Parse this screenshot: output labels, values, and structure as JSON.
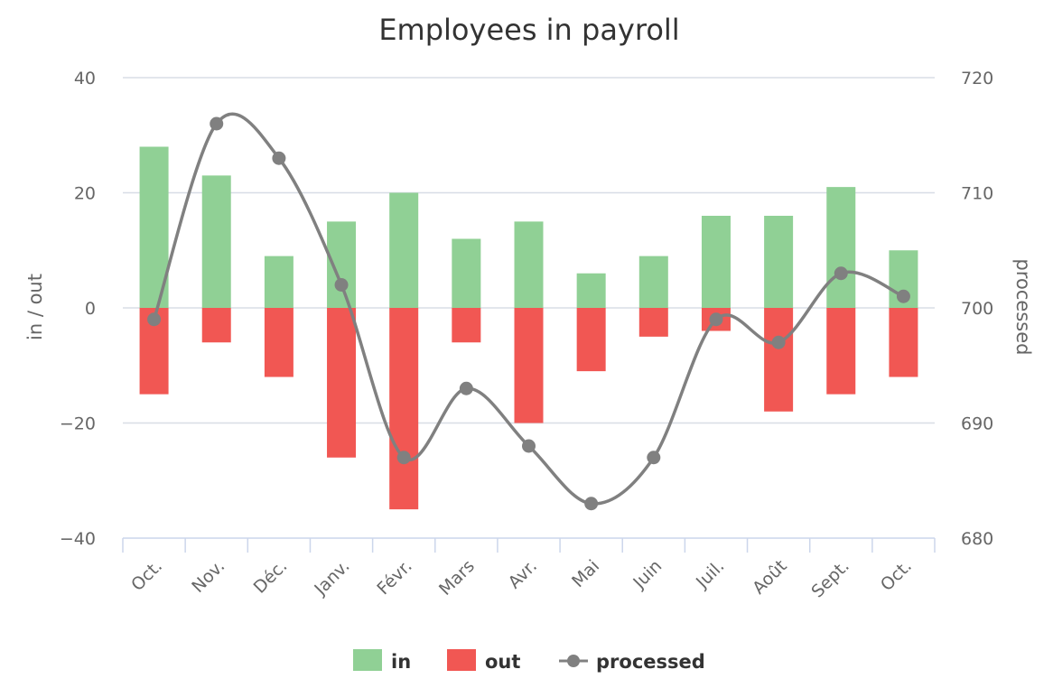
{
  "chart_data": {
    "type": "bar",
    "title": "Employees in payroll",
    "categories": [
      "Oct.",
      "Nov.",
      "Déc.",
      "Janv.",
      "Févr.",
      "Mars",
      "Avr.",
      "Mai",
      "Juin",
      "Juil.",
      "Août",
      "Sept.",
      "Oct."
    ],
    "left_axis": {
      "label": "in / out",
      "min": -40,
      "max": 40,
      "ticks": [
        "40",
        "20",
        "0",
        "−20",
        "−40"
      ]
    },
    "right_axis": {
      "label": "processed",
      "min": 680,
      "max": 720,
      "ticks": [
        "720",
        "710",
        "700",
        "690",
        "680"
      ]
    },
    "grid": true,
    "legend_position": "bottom-center",
    "series": [
      {
        "name": "in",
        "type": "bar",
        "axis": "left",
        "color": "#90d095",
        "values": [
          28,
          23,
          9,
          15,
          20,
          12,
          15,
          6,
          9,
          16,
          16,
          21,
          10
        ]
      },
      {
        "name": "out",
        "type": "bar",
        "axis": "left",
        "color": "#f15753",
        "values": [
          -15,
          -6,
          -12,
          -26,
          -35,
          -6,
          -20,
          -11,
          -5,
          -4,
          -18,
          -15,
          -12
        ]
      },
      {
        "name": "processed",
        "type": "spline",
        "axis": "right",
        "color": "#808080",
        "values": [
          699,
          716,
          713,
          702,
          687,
          693,
          688,
          683,
          687,
          699,
          697,
          703,
          701
        ]
      }
    ]
  }
}
